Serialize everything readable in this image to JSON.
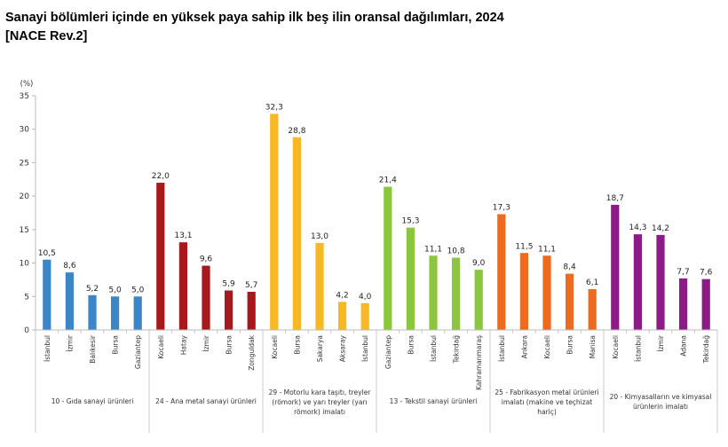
{
  "header": {
    "title_line1": "Sanayi bölümleri içinde en yüksek paya sahip ilk beş ilin oransal dağılımları, 2024",
    "title_line2": "[NACE Rev.2]"
  },
  "chart_data": {
    "type": "bar",
    "ylabel": "(%)",
    "ylim": [
      0,
      35
    ],
    "yticks": [
      0,
      5,
      10,
      15,
      20,
      25,
      30,
      35
    ],
    "grid": false,
    "groups": [
      {
        "label_lines": [
          "10 - Gıda sanayi ürünleri"
        ],
        "color": "#3a86c8",
        "categories": [
          "İstanbul",
          "İzmir",
          "Balıkesir",
          "Bursa",
          "Gaziantep"
        ],
        "values": [
          10.5,
          8.6,
          5.2,
          5.0,
          5.0
        ],
        "value_labels": [
          "10,5",
          "8,6",
          "5,2",
          "5,0",
          "5,0"
        ]
      },
      {
        "label_lines": [
          "24 - Ana metal sanayi ürünleri"
        ],
        "color": "#a8191e",
        "categories": [
          "Kocaeli",
          "Hatay",
          "İzmir",
          "Bursa",
          "Zonguldak"
        ],
        "values": [
          22.0,
          13.1,
          9.6,
          5.9,
          5.7
        ],
        "value_labels": [
          "22,0",
          "13,1",
          "9,6",
          "5,9",
          "5,7"
        ]
      },
      {
        "label_lines": [
          "29 - Motorlu kara taşıtı, treyler",
          "(römork) ve yarı treyler (yarı",
          "römork) imalatı"
        ],
        "color": "#f6b925",
        "categories": [
          "Kocaeli",
          "Bursa",
          "Sakarya",
          "Aksaray",
          "İstanbul"
        ],
        "values": [
          32.3,
          28.8,
          13.0,
          4.2,
          4.0
        ],
        "value_labels": [
          "32,3",
          "28,8",
          "13,0",
          "4,2",
          "4,0"
        ]
      },
      {
        "label_lines": [
          "13 - Tekstil sanayi ürünleri"
        ],
        "color": "#8cc63f",
        "categories": [
          "Gaziantep",
          "Bursa",
          "İstanbul",
          "Tekirdağ",
          "Kahramanmaraş"
        ],
        "values": [
          21.4,
          15.3,
          11.1,
          10.8,
          9.0
        ],
        "value_labels": [
          "21,4",
          "15,3",
          "11,1",
          "10,8",
          "9,0"
        ]
      },
      {
        "label_lines": [
          "25 - Fabrikasyon metal ürünleri",
          "imalatı (makine ve teçhizat",
          "hariç)"
        ],
        "color": "#ee6a1f",
        "categories": [
          "İstanbul",
          "Ankara",
          "Kocaeli",
          "Bursa",
          "Manisa"
        ],
        "values": [
          17.3,
          11.5,
          11.1,
          8.4,
          6.1
        ],
        "value_labels": [
          "17,3",
          "11,5",
          "11,1",
          "8,4",
          "6,1"
        ]
      },
      {
        "label_lines": [
          "20 - Kimyasalların ve kimyasal",
          "ürünlerin imalatı"
        ],
        "color": "#8e1a87",
        "categories": [
          "Kocaeli",
          "İstanbul",
          "İzmir",
          "Adana",
          "Tekirdağ"
        ],
        "values": [
          18.7,
          14.3,
          14.2,
          7.7,
          7.6
        ],
        "value_labels": [
          "18,7",
          "14,3",
          "14,2",
          "7,7",
          "7,6"
        ]
      }
    ]
  }
}
